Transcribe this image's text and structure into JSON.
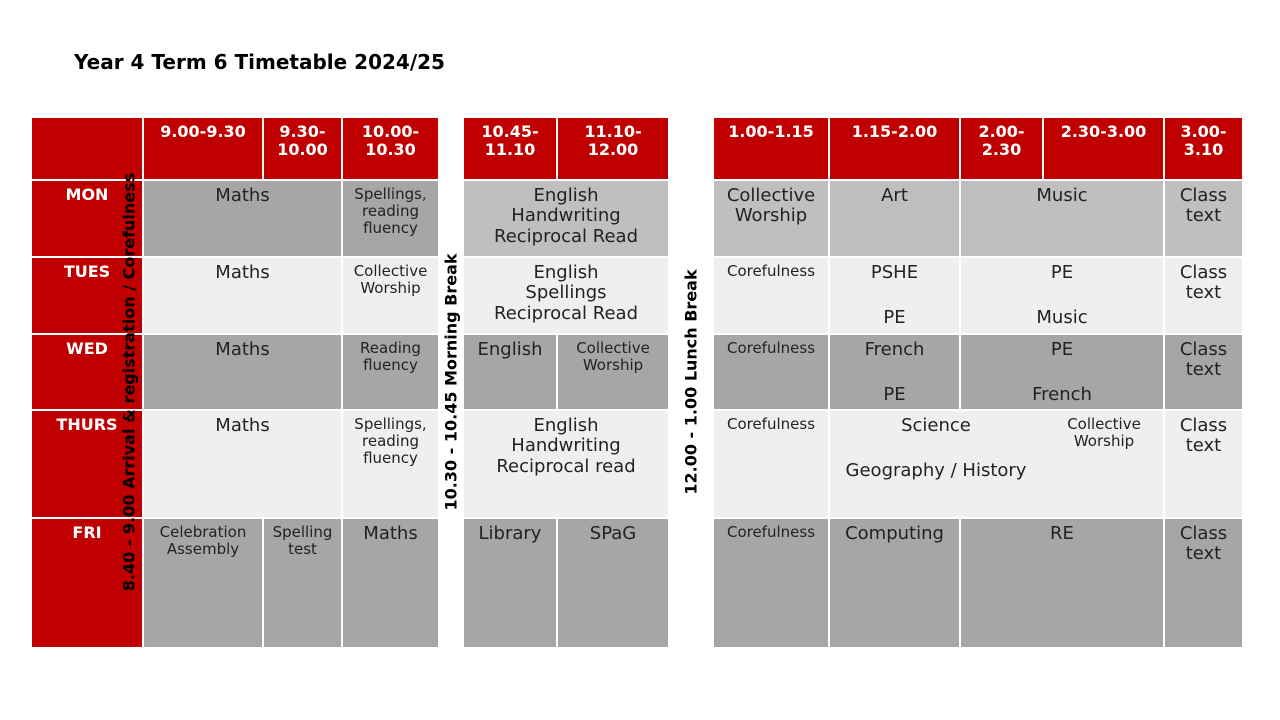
{
  "title": "Year 4 Term 6 Timetable 2024/25",
  "colors": {
    "header_red": "#c00000",
    "dark_grey": "#a6a6a6",
    "mid_grey": "#bfbfbf",
    "light_grey": "#efefef"
  },
  "headers": {
    "t1": "9.00-9.30",
    "t2": "9.30-\n10.00",
    "t3": "10.00-\n10.30",
    "t4": "10.45-\n11.10",
    "t5": "11.10-\n12.00",
    "t6": "1.00-1.15",
    "t7": "1.15-2.00",
    "t8": "2.00-\n2.30",
    "t9": "2.30-3.00",
    "t10": "3.00-\n3.10"
  },
  "days": [
    "MON",
    "TUES",
    "WED",
    "THURS",
    "FRI"
  ],
  "breaks": {
    "arrival": "8.40 - 9.00  Arrival & registration / Corefulness",
    "morning": "10.30 - 10.45 Morning Break",
    "lunch": "12.00 - 1.00 Lunch Break"
  },
  "mon": {
    "a": "Maths",
    "b": "Spellings,\nreading\nfluency",
    "c": "English\nHandwriting\nReciprocal Read",
    "d": "Collective\nWorship",
    "e": "Art",
    "f": "Music",
    "g": "Class\ntext"
  },
  "tue": {
    "a": "Maths",
    "b": "Collective\nWorship",
    "c": "English\nSpellings\nReciprocal Read",
    "d": "Corefulness",
    "e1": "PSHE",
    "e2": "PE",
    "f1": "PE",
    "f2": "Music",
    "g": "Class\ntext"
  },
  "wed": {
    "a": "Maths",
    "b": "Reading\nfluency",
    "c1": "English",
    "c2": "Collective\nWorship",
    "d": "Corefulness",
    "e1": "French",
    "e2": "PE",
    "f1": "PE",
    "f2": "French",
    "g": "Class\ntext"
  },
  "thu": {
    "a": "Maths",
    "b": "Spellings,\nreading\nfluency",
    "c": "English\nHandwriting\nReciprocal read",
    "d": "Corefulness",
    "e1": "Science",
    "e2": "Geography / History",
    "f": "Collective\nWorship",
    "g": "Class\ntext"
  },
  "fri": {
    "a": "Celebration\nAssembly",
    "b": "Spelling\ntest",
    "c": "Maths",
    "d": "Library",
    "e": "SPaG",
    "f": "Corefulness",
    "g": "Computing",
    "h": "RE",
    "i": "Class\ntext"
  }
}
